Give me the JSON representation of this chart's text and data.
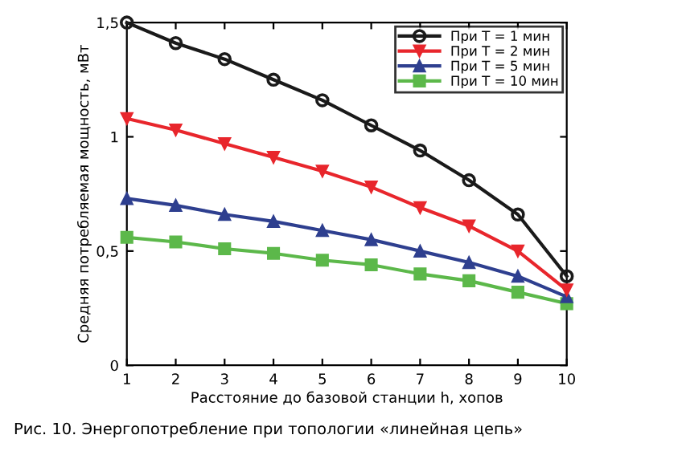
{
  "chart_data": {
    "type": "line",
    "xlabel": "Расстояние до базовой станции h, хопов",
    "ylabel": "Средняя потребляемая мощность, мВт",
    "annotations": [
      "Рис. 10. Энергопотребление при топологии «линейная цепь»"
    ],
    "x": [
      1,
      2,
      3,
      4,
      5,
      6,
      7,
      8,
      9,
      10
    ],
    "series": [
      {
        "name": "При T = 1 мин",
        "color": "#1a1a1a",
        "marker": "circle",
        "values": [
          1.5,
          1.41,
          1.34,
          1.25,
          1.16,
          1.05,
          0.94,
          0.81,
          0.66,
          0.39
        ]
      },
      {
        "name": "При T = 2 мин",
        "color": "#e8262c",
        "marker": "triangle_down",
        "values": [
          1.08,
          1.03,
          0.97,
          0.91,
          0.85,
          0.78,
          0.69,
          0.61,
          0.5,
          0.33
        ]
      },
      {
        "name": "При T = 5 мин",
        "color": "#2e3f8f",
        "marker": "triangle",
        "values": [
          0.73,
          0.7,
          0.66,
          0.63,
          0.59,
          0.55,
          0.5,
          0.45,
          0.39,
          0.3
        ]
      },
      {
        "name": "При T = 10 мин",
        "color": "#5cb84a",
        "marker": "square",
        "values": [
          0.56,
          0.54,
          0.51,
          0.49,
          0.46,
          0.44,
          0.4,
          0.37,
          0.32,
          0.27
        ]
      }
    ],
    "xlim": [
      1,
      10
    ],
    "xticks": [
      1,
      2,
      3,
      4,
      5,
      6,
      7,
      8,
      9,
      10
    ],
    "ylim": [
      0,
      1.5
    ],
    "yticks": [
      0,
      {
        "value": 0.5,
        "label": "0,5"
      },
      1,
      {
        "value": 1.5,
        "label": "1,5"
      }
    ],
    "grid": false,
    "legend": "top right",
    "line_style": "solid"
  }
}
